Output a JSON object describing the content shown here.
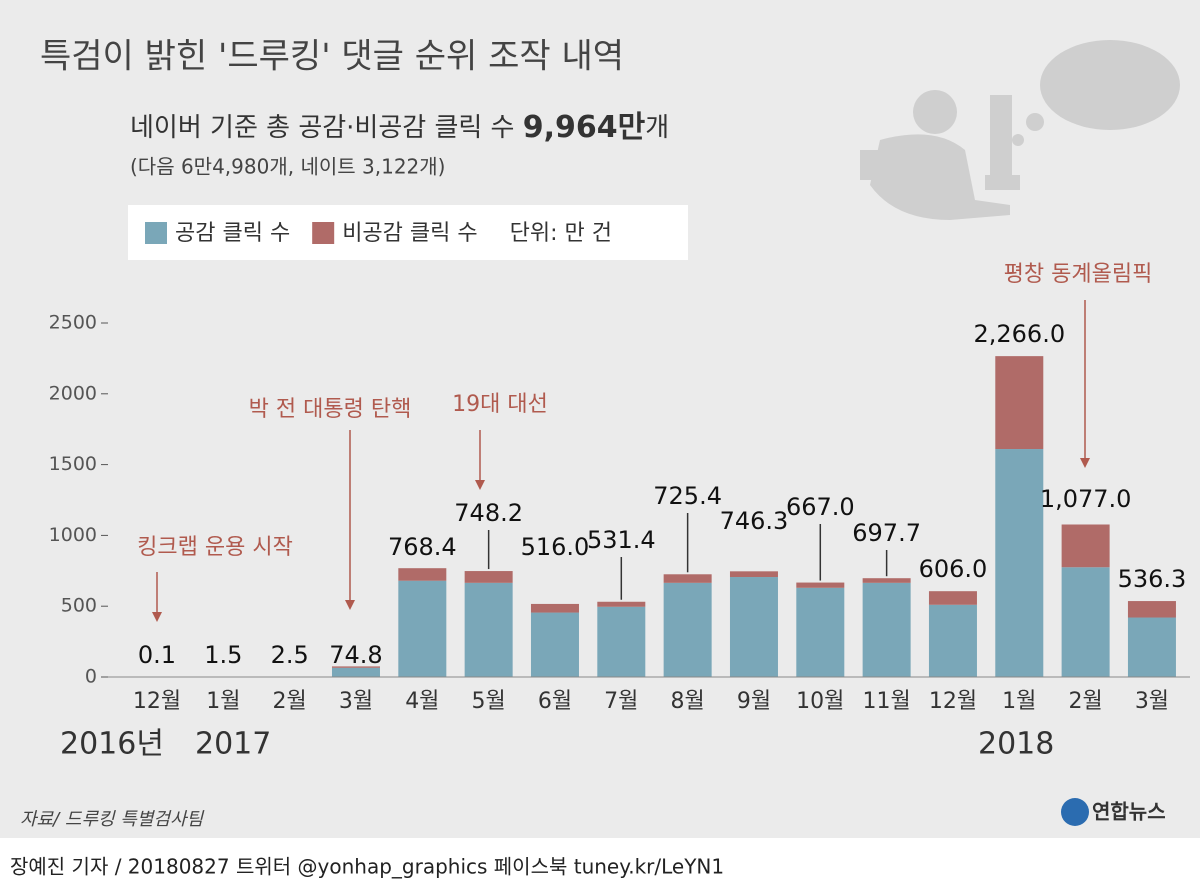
{
  "chart_data": {
    "type": "stacked_bar",
    "title": "특검이 밝힌 '드루킹' 댓글 순위 조작 내역",
    "subtitle": "네이버 기준 총 공감·비공감 클릭 수 ",
    "subtitle_highlight": "9,964만",
    "subtitle_suffix": "개",
    "note": "(다음 6만4,980개, 네이트 3,122개)",
    "unit": "단위: 만 건",
    "categories": [
      "12월",
      "1월",
      "2월",
      "3월",
      "4월",
      "5월",
      "6월",
      "7월",
      "8월",
      "9월",
      "10월",
      "11월",
      "12월",
      "1월",
      "2월",
      "3월"
    ],
    "years": [
      "2016년",
      "2017",
      "2018"
    ],
    "series": [
      {
        "name": "공감 클릭 수",
        "color": "#7aa7b8",
        "values": [
          0.1,
          1.5,
          2.5,
          65,
          680,
          665,
          455,
          496,
          665,
          706,
          630,
          665,
          510,
          1610,
          775,
          420
        ]
      },
      {
        "name": "비공감 클릭 수",
        "color": "#b06b68",
        "values": [
          0,
          0,
          0,
          9.8,
          88.4,
          83.2,
          61,
          35.4,
          60.4,
          40.3,
          37,
          32.7,
          96,
          656,
          302,
          116.3
        ]
      }
    ],
    "total_labels": [
      "0.1",
      "1.5",
      "2.5",
      "74.8",
      "768.4",
      "748.2",
      "516.0",
      "531.4",
      "725.4",
      "746.3",
      "667.0",
      "697.7",
      "606.0",
      "2,266.0",
      "1,077.0",
      "536.3"
    ],
    "annotations": [
      "킹크랩 운용 시작",
      "박 전 대통령 탄핵",
      "19대 대선",
      "평창 동계올림픽"
    ],
    "ylim": [
      0,
      2500
    ],
    "yticks": [
      0,
      500,
      1000,
      1500,
      2000,
      2500
    ],
    "source": "자료/ 드루킹 특별검사팀",
    "logo": "연합뉴스",
    "footer": "장예진 기자 / 20180827 트위터 @yonhap_graphics  페이스북 tuney.kr/LeYN1"
  }
}
